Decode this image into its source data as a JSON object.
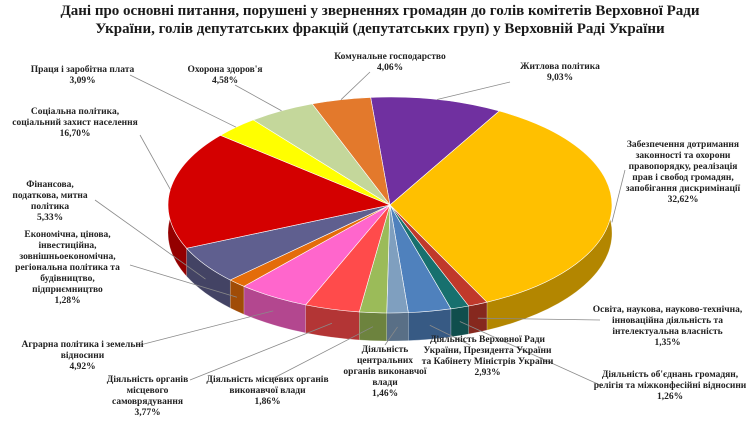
{
  "chart_data": {
    "type": "pie",
    "title": "Дані про основні питання, порушені у зверненнях громадян до голів комітетів Верховної Ради України, голів депутатських фракцій (депутатських груп) у Верховній Раді України",
    "labels": [
      "Житлова політика",
      "Забезпечення дотримання законності та охорони правопорядку, реалізація прав і свобод громадян, запобігання дискримінації",
      "Освіта, наукова, науково-технічна, інноваційна діяльність та інтелектуальна власність",
      "Діяльність об'єднань громадян, релігія та міжконфесійні відносини",
      "Діяльність Верховної Ради України, Президента України та Кабінету Міністрів України",
      "Діяльність центральних органів виконавчої влади",
      "Діяльність місцевих органів виконавчої влади",
      "Діяльність органів місцевого самоврядування",
      "Аграрна політика і земельні відносини",
      "Економічна, цінова, інвестиційна, зовнішньоекономічна, регіональна політика та будівництво, підприємництво",
      "Фінансова, податкова, митна політика",
      "Соціальна політика, соціальний захист населення",
      "Праця і заробітна плата",
      "Охорона здоров'я",
      "Комунальне господарство"
    ],
    "values": [
      9.03,
      32.62,
      1.35,
      1.26,
      2.93,
      1.46,
      1.86,
      3.77,
      4.92,
      1.28,
      5.33,
      16.7,
      3.09,
      4.58,
      4.06
    ],
    "value_labels": [
      "9,03%",
      "32,62%",
      "1,35%",
      "1,26%",
      "2,93%",
      "1,46%",
      "1,86%",
      "3,77%",
      "4,92%",
      "1,28%",
      "5,33%",
      "16,70%",
      "3,09%",
      "4,58%",
      "4,06%"
    ],
    "colors": [
      "#7030a0",
      "#ffc000",
      "#c0392b",
      "#17706e",
      "#4f81bd",
      "#7f9fbf",
      "#9bbb59",
      "#ff4b4b",
      "#ff66cc",
      "#e46c0a",
      "#5f5f8f",
      "#d40000",
      "#ffff00",
      "#c4d79b",
      "#e3792c"
    ]
  }
}
